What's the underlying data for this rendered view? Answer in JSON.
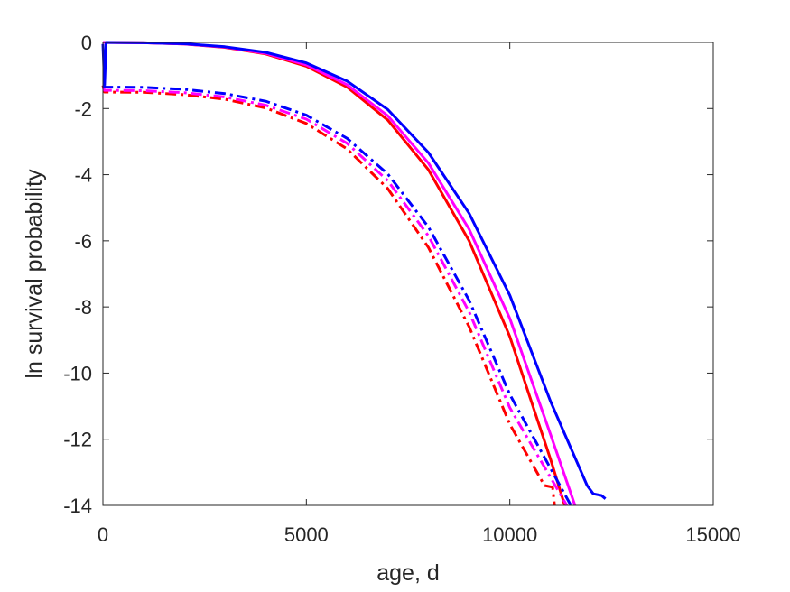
{
  "chart_data": {
    "type": "line",
    "xlabel": "age, d",
    "ylabel": "ln survival probability",
    "xlim": [
      0,
      15000
    ],
    "ylim": [
      -14,
      0
    ],
    "xticks": [
      0,
      5000,
      10000,
      15000
    ],
    "yticks": [
      0,
      -2,
      -4,
      -6,
      -8,
      -10,
      -12,
      -14
    ],
    "xtick_labels": [
      "0",
      "5000",
      "10000",
      "15000"
    ],
    "ytick_labels": [
      "0",
      "-2",
      "-4",
      "-6",
      "-8",
      "-10",
      "-12",
      "-14"
    ],
    "grid": false,
    "legend": "none",
    "series": [
      {
        "color": "#ff0000",
        "style": "solid",
        "points": [
          [
            0,
            0
          ],
          [
            1000,
            -0.01
          ],
          [
            2000,
            -0.05
          ],
          [
            3000,
            -0.15
          ],
          [
            4000,
            -0.35
          ],
          [
            5000,
            -0.72
          ],
          [
            6000,
            -1.35
          ],
          [
            7000,
            -2.35
          ],
          [
            8000,
            -3.85
          ],
          [
            9000,
            -6.0
          ],
          [
            10000,
            -8.9
          ],
          [
            11000,
            -12.6
          ],
          [
            11350,
            -14.0
          ]
        ]
      },
      {
        "color": "#ff00ff",
        "style": "solid",
        "points": [
          [
            0,
            0
          ],
          [
            1000,
            -0.01
          ],
          [
            2000,
            -0.05
          ],
          [
            3000,
            -0.14
          ],
          [
            4000,
            -0.33
          ],
          [
            5000,
            -0.68
          ],
          [
            6000,
            -1.28
          ],
          [
            7000,
            -2.22
          ],
          [
            8000,
            -3.65
          ],
          [
            9000,
            -5.65
          ],
          [
            10000,
            -8.35
          ],
          [
            11000,
            -11.85
          ],
          [
            11600,
            -14.0
          ]
        ]
      },
      {
        "color": "#0000ff",
        "style": "solid",
        "points": [
          [
            0,
            -0.05
          ],
          [
            40,
            -1.3
          ],
          [
            80,
            0
          ],
          [
            1000,
            -0.01
          ],
          [
            2000,
            -0.04
          ],
          [
            3000,
            -0.13
          ],
          [
            4000,
            -0.3
          ],
          [
            5000,
            -0.62
          ],
          [
            6000,
            -1.17
          ],
          [
            7000,
            -2.03
          ],
          [
            8000,
            -3.33
          ],
          [
            9000,
            -5.17
          ],
          [
            10000,
            -7.65
          ],
          [
            11000,
            -10.85
          ],
          [
            11900,
            -13.4
          ],
          [
            12050,
            -13.65
          ],
          [
            12250,
            -13.7
          ],
          [
            12350,
            -13.8
          ]
        ]
      },
      {
        "color": "#ff0000",
        "style": "dashdot",
        "points": [
          [
            0,
            -1.3
          ],
          [
            40,
            -1.5
          ],
          [
            1000,
            -1.51
          ],
          [
            2000,
            -1.58
          ],
          [
            3000,
            -1.72
          ],
          [
            4000,
            -1.98
          ],
          [
            5000,
            -2.45
          ],
          [
            6000,
            -3.22
          ],
          [
            7000,
            -4.42
          ],
          [
            8000,
            -6.2
          ],
          [
            9000,
            -8.6
          ],
          [
            10000,
            -11.55
          ],
          [
            10850,
            -13.4
          ],
          [
            11050,
            -13.45
          ],
          [
            11100,
            -14.0
          ]
        ]
      },
      {
        "color": "#ff00ff",
        "style": "dashdot",
        "points": [
          [
            0,
            -1.35
          ],
          [
            40,
            -1.45
          ],
          [
            1000,
            -1.46
          ],
          [
            2000,
            -1.52
          ],
          [
            3000,
            -1.65
          ],
          [
            4000,
            -1.9
          ],
          [
            5000,
            -2.32
          ],
          [
            6000,
            -3.05
          ],
          [
            7000,
            -4.18
          ],
          [
            8000,
            -5.85
          ],
          [
            9000,
            -8.15
          ],
          [
            10000,
            -11.05
          ],
          [
            11400,
            -14.0
          ]
        ]
      },
      {
        "color": "#0000ff",
        "style": "dashdot",
        "points": [
          [
            0,
            -1.3
          ],
          [
            40,
            -1.35
          ],
          [
            1000,
            -1.36
          ],
          [
            2000,
            -1.42
          ],
          [
            3000,
            -1.55
          ],
          [
            4000,
            -1.78
          ],
          [
            5000,
            -2.2
          ],
          [
            6000,
            -2.9
          ],
          [
            7000,
            -3.98
          ],
          [
            8000,
            -5.58
          ],
          [
            9000,
            -7.8
          ],
          [
            10000,
            -10.65
          ],
          [
            11500,
            -14.0
          ]
        ]
      }
    ]
  }
}
